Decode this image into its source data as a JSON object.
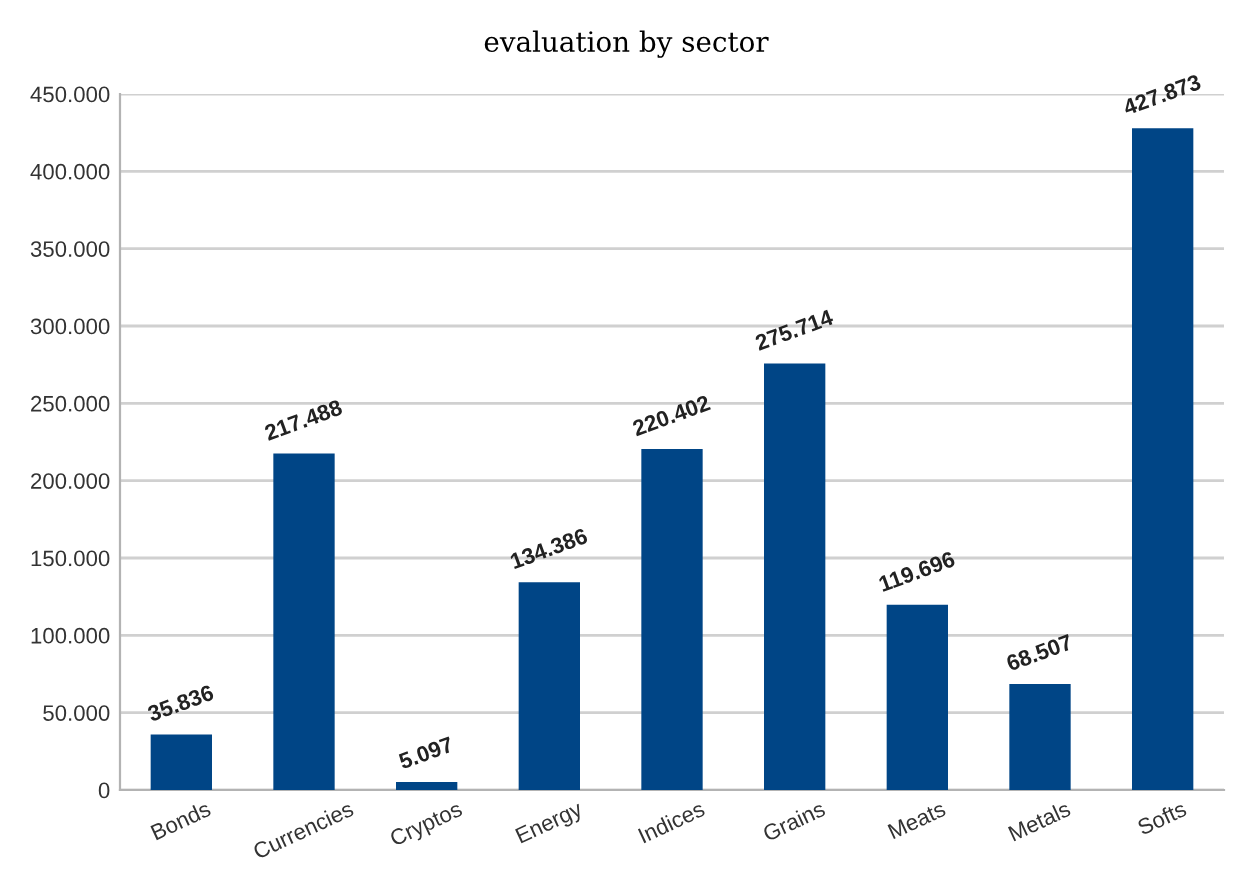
{
  "chart_data": {
    "type": "bar",
    "title": "evaluation by sector",
    "categories": [
      "Bonds",
      "Currencies",
      "Cryptos",
      "Energy",
      "Indices",
      "Grains",
      "Meats",
      "Metals",
      "Softs"
    ],
    "values": [
      35836,
      217488,
      5097,
      134386,
      220402,
      275714,
      119696,
      68507,
      427873
    ],
    "value_labels": [
      "35.836",
      "217.488",
      "5.097",
      "134.386",
      "220.402",
      "275.714",
      "119.696",
      "68.507",
      "427.873"
    ],
    "color": "#004586",
    "ylim": [
      0,
      450000
    ],
    "yticks": [
      {
        "value": 0,
        "label": "0"
      },
      {
        "value": 50000,
        "label": "50.000"
      },
      {
        "value": 100000,
        "label": "100.000"
      },
      {
        "value": 150000,
        "label": "150.000"
      },
      {
        "value": 200000,
        "label": "200.000"
      },
      {
        "value": 250000,
        "label": "250.000"
      },
      {
        "value": 300000,
        "label": "300.000"
      },
      {
        "value": 350000,
        "label": "350.000"
      },
      {
        "value": 400000,
        "label": "400.000"
      },
      {
        "value": 450000,
        "label": "450.000"
      }
    ],
    "grid": "y",
    "legend": false
  }
}
